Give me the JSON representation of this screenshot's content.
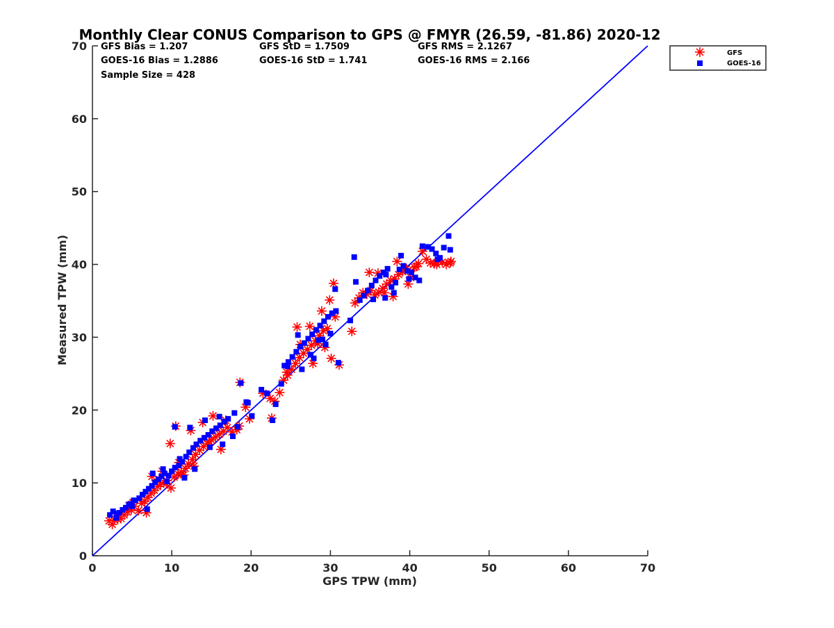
{
  "chart_data": {
    "type": "scatter",
    "title": "Monthly Clear CONUS Comparison to GPS @ FMYR (26.59, -81.86) 2020-12",
    "xlabel": "GPS TPW (mm)",
    "ylabel": "Measured TPW (mm)",
    "xlim": [
      0,
      70
    ],
    "ylim": [
      0,
      70
    ],
    "xticks": [
      "0",
      "10",
      "20",
      "30",
      "40",
      "50",
      "60",
      "70"
    ],
    "yticks": [
      "0",
      "10",
      "20",
      "30",
      "40",
      "50",
      "60",
      "70"
    ],
    "grid": false,
    "legend_position": "top-right (outside)",
    "reference_line": {
      "x": [
        0,
        70
      ],
      "y": [
        0,
        70
      ],
      "color": "#0000ff"
    },
    "stats": {
      "gfs_bias": "GFS Bias = 1.207",
      "gfs_std": "GFS StD = 1.7509",
      "gfs_rms": "GFS RMS = 2.1267",
      "goes_bias": "GOES-16 Bias = 1.2886",
      "goes_std": "GOES-16 StD = 1.741",
      "goes_rms": "GOES-16 RMS = 2.166",
      "sample_size": "Sample Size = 428"
    },
    "series": [
      {
        "name": "GFS",
        "marker": "asterisk",
        "color": "#ff0000",
        "x": [
          2.1,
          2.5,
          2.8,
          3.2,
          3.6,
          4.0,
          4.4,
          4.9,
          5.3,
          5.8,
          6.2,
          6.6,
          7.0,
          7.4,
          7.8,
          8.2,
          8.6,
          9.0,
          9.4,
          9.9,
          10.3,
          10.8,
          11.2,
          11.7,
          12.1,
          12.6,
          13.0,
          13.5,
          14.0,
          14.5,
          15.0,
          15.5,
          16.0,
          16.5,
          17.0,
          17.6,
          18.2,
          18.6,
          19.3,
          9.8,
          10.5,
          12.4,
          13.9,
          15.2,
          16.8,
          18.5,
          21.5,
          22.4,
          22.6,
          23.0,
          23.6,
          24.1,
          24.6,
          25.1,
          25.6,
          26.1,
          26.6,
          27.1,
          27.6,
          28.1,
          28.6,
          29.1,
          29.6,
          30.1,
          30.6,
          31.1,
          26.2,
          27.4,
          28.9,
          29.9,
          30.4,
          32.7,
          33.1,
          33.6,
          34.1,
          34.6,
          35.1,
          35.6,
          36.1,
          36.6,
          37.1,
          37.6,
          38.1,
          38.6,
          39.1,
          39.6,
          40.1,
          40.6,
          41.1,
          41.6,
          42.1,
          42.6,
          43.1,
          43.6,
          44.1,
          44.6,
          45.1,
          45.2,
          36.0,
          38.4,
          40.8,
          7.5,
          8.8,
          11.5,
          12.8,
          14.7,
          16.2,
          19.8,
          3.0,
          4.6,
          5.1,
          6.8,
          9.3,
          10.9,
          24.5,
          27.8,
          28.4,
          29.3,
          25.8,
          34.9,
          36.8,
          37.9,
          39.8,
          43.4
        ],
        "y": [
          4.8,
          4.3,
          4.9,
          5.0,
          5.1,
          5.6,
          6.0,
          6.3,
          6.8,
          6.2,
          7.2,
          7.5,
          8.0,
          8.6,
          9.0,
          9.5,
          9.8,
          10.1,
          10.3,
          9.3,
          10.8,
          11.2,
          11.5,
          12.0,
          12.6,
          13.2,
          13.9,
          14.5,
          15.0,
          15.4,
          15.9,
          16.3,
          16.7,
          17.1,
          17.6,
          17.0,
          17.3,
          23.8,
          20.4,
          15.4,
          17.8,
          17.2,
          18.3,
          19.2,
          18.6,
          17.8,
          22.3,
          21.6,
          18.9,
          21.2,
          22.4,
          24.1,
          24.8,
          25.6,
          26.4,
          27.2,
          27.8,
          28.3,
          28.9,
          29.5,
          30.2,
          30.9,
          31.2,
          27.1,
          32.8,
          26.2,
          29.0,
          31.5,
          33.6,
          35.1,
          37.4,
          30.8,
          34.7,
          35.4,
          36.1,
          35.9,
          36.4,
          35.8,
          36.2,
          36.7,
          37.3,
          37.8,
          38.0,
          38.6,
          39.0,
          39.4,
          38.2,
          39.6,
          40.1,
          41.8,
          40.7,
          40.2,
          40.1,
          40.5,
          40.3,
          40.0,
          40.2,
          40.4,
          38.8,
          40.4,
          39.7,
          10.9,
          11.6,
          11.1,
          12.3,
          15.7,
          14.6,
          18.8,
          5.4,
          6.9,
          7.3,
          5.9,
          9.9,
          12.8,
          25.2,
          26.4,
          29.1,
          28.6,
          31.4,
          38.9,
          36.1,
          35.6,
          37.3,
          40.0
        ]
      },
      {
        "name": "GOES-16",
        "marker": "square",
        "color": "#0000ff",
        "x": [
          2.2,
          2.6,
          3.0,
          3.4,
          3.8,
          4.2,
          4.6,
          5.0,
          5.4,
          5.9,
          6.3,
          6.7,
          7.1,
          7.5,
          7.9,
          8.3,
          8.7,
          9.1,
          9.6,
          10.0,
          10.4,
          10.9,
          11.3,
          11.8,
          12.2,
          12.7,
          13.1,
          13.6,
          14.1,
          14.6,
          15.1,
          15.6,
          16.1,
          16.6,
          17.1,
          17.7,
          18.3,
          18.7,
          19.4,
          10.4,
          12.3,
          14.2,
          16.0,
          17.9,
          19.6,
          21.3,
          22.0,
          22.7,
          23.1,
          23.8,
          24.2,
          24.7,
          25.2,
          25.7,
          26.2,
          26.7,
          27.2,
          27.7,
          28.2,
          28.7,
          29.2,
          29.7,
          30.2,
          30.7,
          31.0,
          26.4,
          27.5,
          29.0,
          30.0,
          30.6,
          32.5,
          33.0,
          33.7,
          34.2,
          34.7,
          35.2,
          35.7,
          36.2,
          36.7,
          37.2,
          37.7,
          38.2,
          38.7,
          39.2,
          39.7,
          40.2,
          40.7,
          41.2,
          41.6,
          42.3,
          42.8,
          43.3,
          43.8,
          44.3,
          44.9,
          45.1,
          35.4,
          37.0,
          38.9,
          7.6,
          8.9,
          11.6,
          12.9,
          14.8,
          16.4,
          20.1,
          3.1,
          4.7,
          5.2,
          6.9,
          9.4,
          11.0,
          24.6,
          27.9,
          28.5,
          29.4,
          25.9,
          33.2,
          36.9,
          38.0,
          39.9,
          43.5
        ],
        "y": [
          5.6,
          6.1,
          5.2,
          5.9,
          6.3,
          6.6,
          7.0,
          6.8,
          7.6,
          7.9,
          8.4,
          8.8,
          9.2,
          9.6,
          10.1,
          10.5,
          10.9,
          11.3,
          11.0,
          11.6,
          12.1,
          12.4,
          12.9,
          13.6,
          14.2,
          14.8,
          15.3,
          15.8,
          16.2,
          16.6,
          17.1,
          17.5,
          17.9,
          18.4,
          18.8,
          16.4,
          17.7,
          23.7,
          21.1,
          17.7,
          17.6,
          18.6,
          19.1,
          19.6,
          21.0,
          22.8,
          22.3,
          18.6,
          20.8,
          23.6,
          26.1,
          26.6,
          27.3,
          28.0,
          28.7,
          29.2,
          29.8,
          30.4,
          31.0,
          31.6,
          32.2,
          32.8,
          33.3,
          33.6,
          26.5,
          25.6,
          27.6,
          29.7,
          30.5,
          36.6,
          32.3,
          41.0,
          35.1,
          35.7,
          36.4,
          37.1,
          37.8,
          38.4,
          38.9,
          39.4,
          36.9,
          37.5,
          39.3,
          39.8,
          39.1,
          38.9,
          38.2,
          37.8,
          42.5,
          42.4,
          42.1,
          41.5,
          40.9,
          42.3,
          43.9,
          42.0,
          35.2,
          38.6,
          41.2,
          11.3,
          11.9,
          10.7,
          11.9,
          14.9,
          15.3,
          19.2,
          5.8,
          7.1,
          7.6,
          6.4,
          10.2,
          13.3,
          26.0,
          27.1,
          29.6,
          29.0,
          30.3,
          37.6,
          35.4,
          36.1,
          38.0,
          40.7
        ]
      }
    ]
  }
}
